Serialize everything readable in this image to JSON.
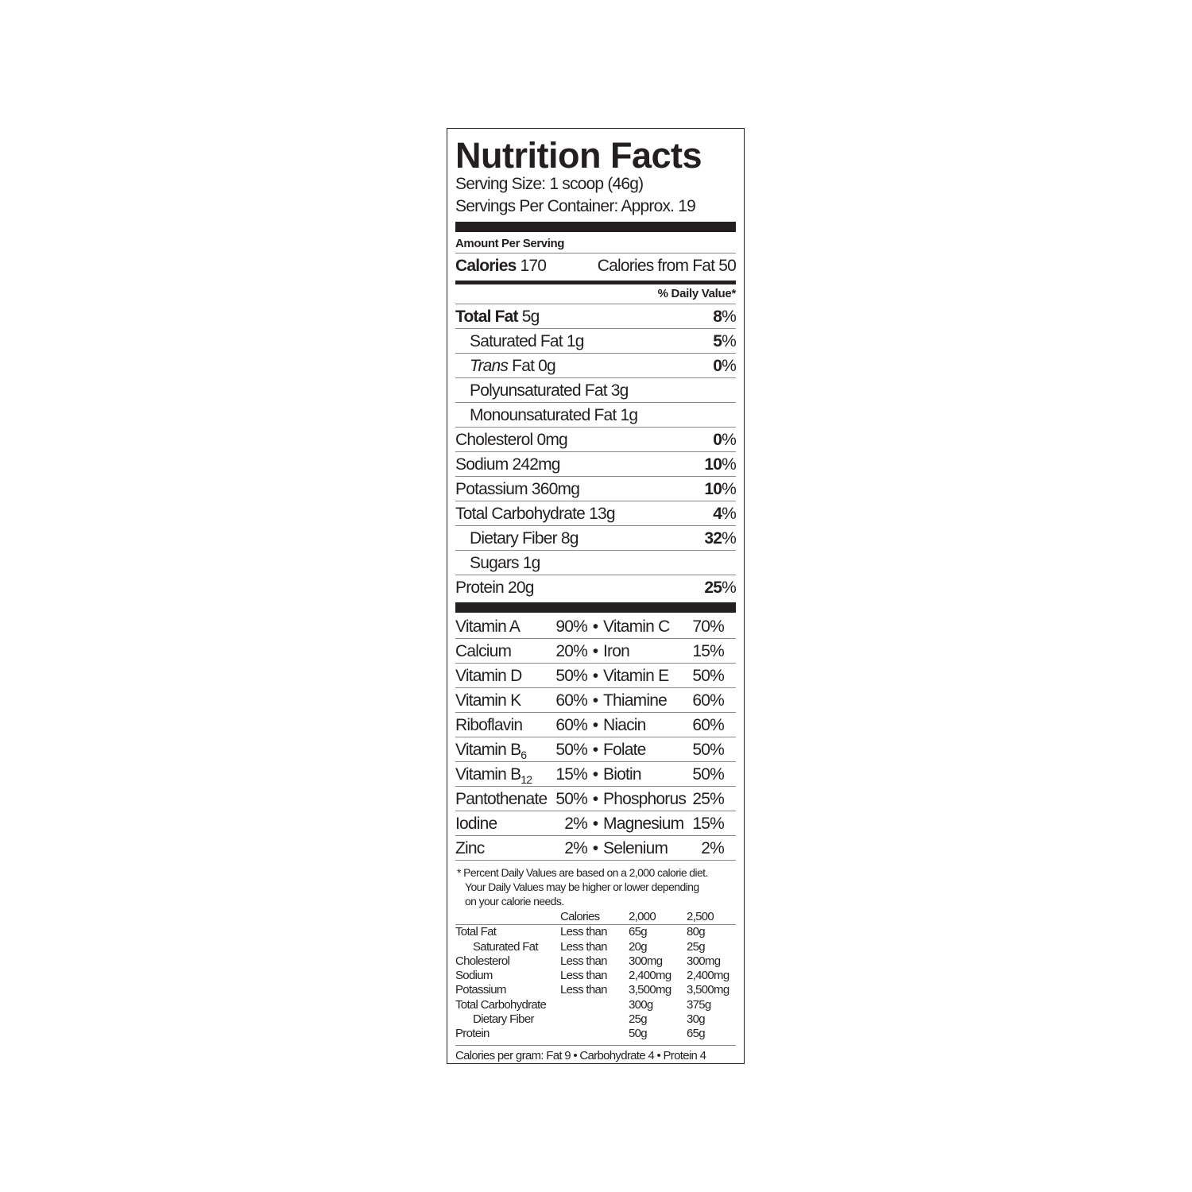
{
  "title": "Nutrition Facts",
  "serving_size": "Serving Size: 1 scoop (46g)",
  "servings_per_container": "Servings Per Container: Approx. 19",
  "amount_per_serving": "Amount Per Serving",
  "calories_label": "Calories",
  "calories_value": "170",
  "calories_from_fat": "Calories from Fat 50",
  "daily_value_header": "% Daily Value*",
  "nutrients": [
    {
      "name": "Total Fat",
      "amount": "5g",
      "dv": "8",
      "bold": true,
      "indent": false
    },
    {
      "name": "Saturated Fat",
      "amount": "1g",
      "dv": "5",
      "bold": false,
      "indent": true
    },
    {
      "name": "Trans",
      "name_suffix": "Fat",
      "amount": "0g",
      "dv": "0",
      "bold": false,
      "indent": true,
      "italic": true
    },
    {
      "name": "Polyunsaturated Fat",
      "amount": "3g",
      "dv": "",
      "bold": false,
      "indent": true
    },
    {
      "name": "Monounsaturated Fat",
      "amount": "1g",
      "dv": "",
      "bold": false,
      "indent": true
    },
    {
      "name": "Cholesterol",
      "amount": "0mg",
      "dv": "0",
      "bold": false,
      "indent": false
    },
    {
      "name": "Sodium",
      "amount": "242mg",
      "dv": "10",
      "bold": false,
      "indent": false
    },
    {
      "name": "Potassium",
      "amount": "360mg",
      "dv": "10",
      "bold": false,
      "indent": false
    },
    {
      "name": "Total Carbohydrate",
      "amount": "13g",
      "dv": "4",
      "bold": false,
      "indent": false
    },
    {
      "name": "Dietary Fiber",
      "amount": "8g",
      "dv": "32",
      "bold": false,
      "indent": true
    },
    {
      "name": "Sugars",
      "amount": "1g",
      "dv": "",
      "bold": false,
      "indent": true
    },
    {
      "name": "Protein",
      "amount": "20g",
      "dv": "25",
      "bold": false,
      "indent": false
    }
  ],
  "vitamins": [
    [
      "Vitamin A",
      "90%",
      "Vitamin C",
      "70%"
    ],
    [
      "Calcium",
      "20%",
      "Iron",
      "15%"
    ],
    [
      "Vitamin D",
      "50%",
      "Vitamin E",
      "50%"
    ],
    [
      "Vitamin K",
      "60%",
      "Thiamine",
      "60%"
    ],
    [
      "Riboflavin",
      "60%",
      "Niacin",
      "60%"
    ],
    [
      "Vitamin B",
      "50%",
      "Folate",
      "50%",
      "6"
    ],
    [
      "Vitamin B",
      "15%",
      "Biotin",
      "50%",
      "12"
    ],
    [
      "Pantothenate",
      "50%",
      "Phosphorus",
      "25%"
    ],
    [
      "Iodine",
      "2%",
      "Magnesium",
      "15%"
    ],
    [
      "Zinc",
      "2%",
      "Selenium",
      "2%"
    ]
  ],
  "bullet": "•",
  "footnote": [
    "* Percent Daily Values are based on a 2,000 calorie diet.",
    "Your Daily Values may be higher or lower depending",
    "on your calorie needs."
  ],
  "dv_table": {
    "header": [
      "",
      "Calories",
      "2,000",
      "2,500"
    ],
    "rows": [
      [
        "Total Fat",
        "Less than",
        "65g",
        "80g"
      ],
      [
        "Saturated Fat",
        "Less than",
        "20g",
        "25g"
      ],
      [
        "Cholesterol",
        "Less than",
        "300mg",
        "300mg"
      ],
      [
        "Sodium",
        "Less than",
        "2,400mg",
        "2,400mg"
      ],
      [
        "Potassium",
        "Less than",
        "3,500mg",
        "3,500mg"
      ],
      [
        "Total Carbohydrate",
        "",
        "300g",
        "375g"
      ],
      [
        "Dietary Fiber",
        "",
        "25g",
        "30g"
      ],
      [
        "Protein",
        "",
        "50g",
        "65g"
      ]
    ]
  },
  "calories_per_gram": "Calories per gram:  Fat 9  •  Carbohydrate 4  •  Protein 4"
}
